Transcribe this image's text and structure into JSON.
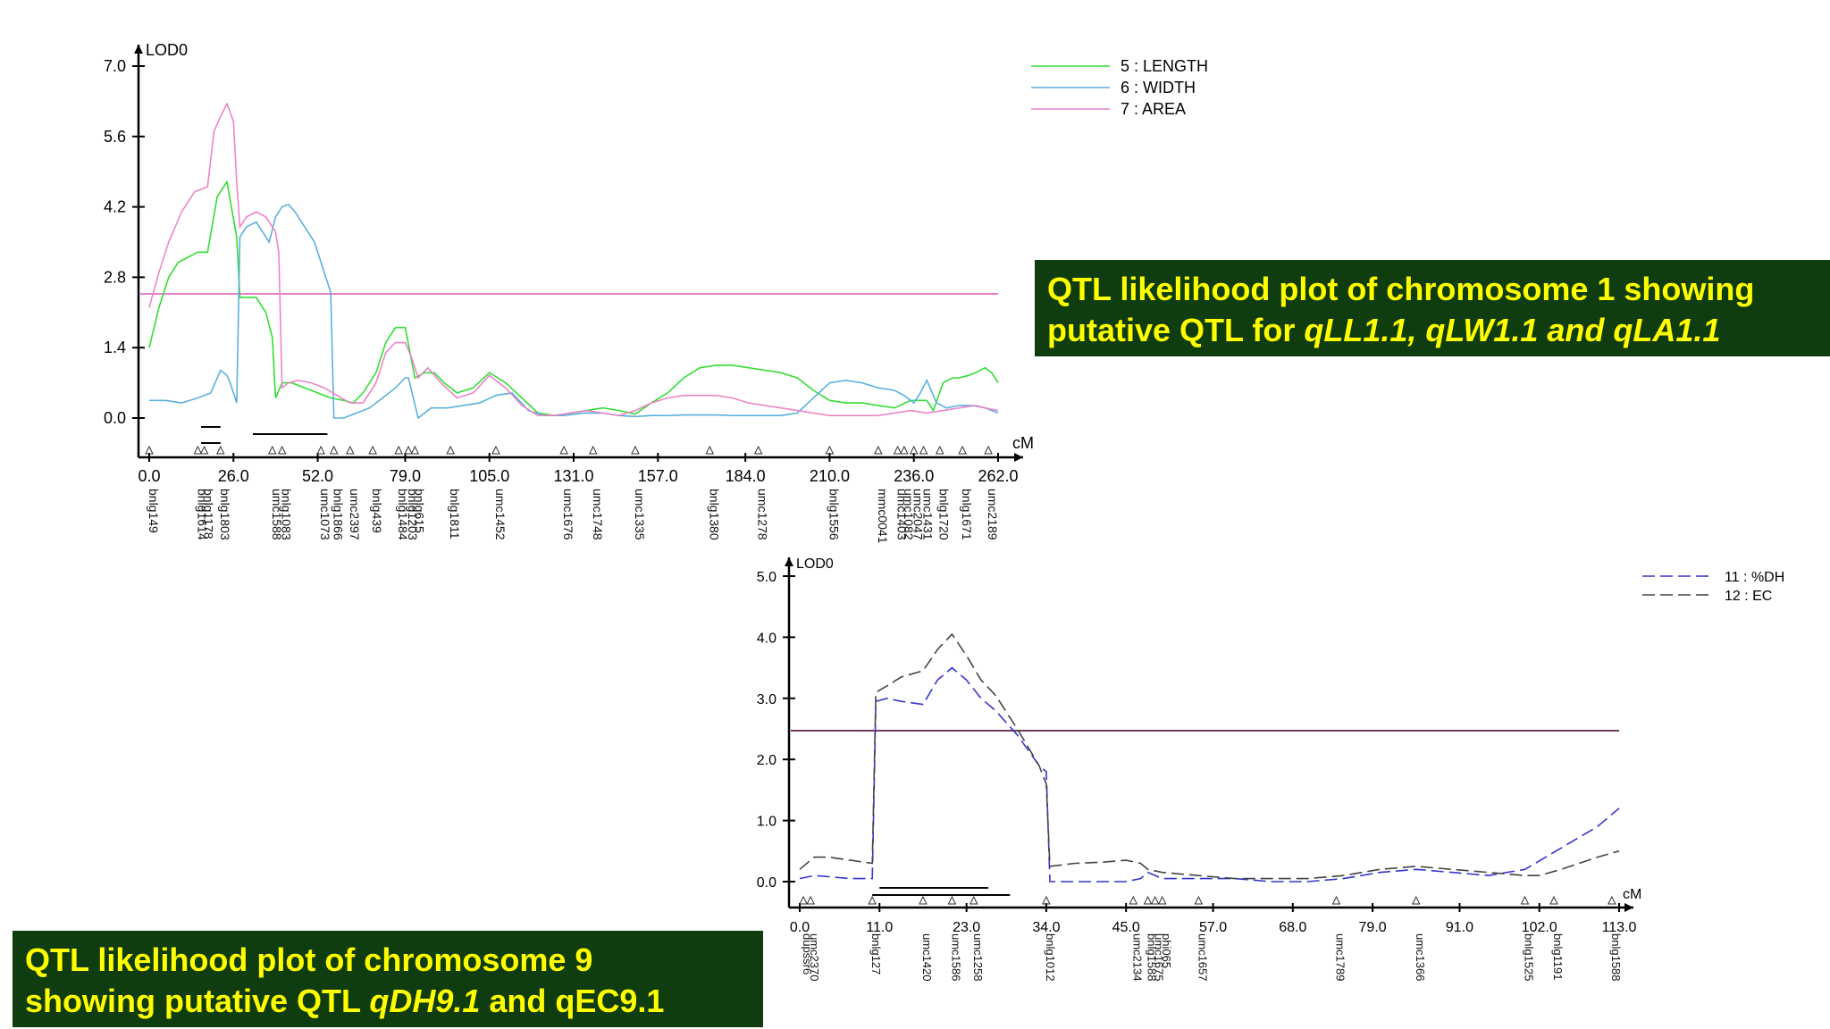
{
  "chart_data": [
    {
      "type": "line",
      "ylabel": "LOD0",
      "xlabel": "cM",
      "xlim": [
        0,
        262
      ],
      "ylim": [
        0,
        7.0
      ],
      "yticks": [
        "0.0",
        "1.4",
        "2.8",
        "4.2",
        "5.6",
        "7.0"
      ],
      "ytick_values": [
        0,
        1.4,
        2.8,
        4.2,
        5.6,
        7.0
      ],
      "xticks": [
        "0.0",
        "26.0",
        "52.0",
        "79.0",
        "105.0",
        "131.0",
        "157.0",
        "184.0",
        "210.0",
        "236.0",
        "262.0"
      ],
      "xtick_values": [
        0,
        26,
        52,
        79,
        105,
        131,
        157,
        184,
        210,
        236,
        262
      ],
      "threshold": 2.47,
      "threshold_color": "#e67fd0",
      "series": [
        {
          "name": "5 : LENGTH",
          "color": "#33dd33",
          "style": "solid",
          "x": [
            0,
            3,
            6,
            9,
            12,
            15,
            18,
            21,
            24,
            27,
            28,
            30,
            33,
            36,
            38,
            39,
            41,
            44,
            48,
            52,
            56,
            60,
            63,
            66,
            70,
            73,
            76,
            79,
            82,
            85,
            88,
            91,
            95,
            100,
            105,
            110,
            115,
            120,
            125,
            130,
            135,
            140,
            145,
            150,
            155,
            160,
            165,
            170,
            175,
            180,
            185,
            190,
            195,
            200,
            205,
            210,
            215,
            220,
            225,
            230,
            235,
            240,
            242,
            245,
            248,
            250,
            253,
            255,
            258,
            260,
            262
          ],
          "y": [
            1.4,
            2.2,
            2.8,
            3.1,
            3.2,
            3.3,
            3.3,
            4.4,
            4.7,
            3.6,
            2.4,
            2.4,
            2.4,
            2.1,
            1.6,
            0.4,
            0.7,
            0.7,
            0.6,
            0.5,
            0.4,
            0.35,
            0.3,
            0.5,
            0.9,
            1.5,
            1.8,
            1.8,
            0.8,
            0.9,
            0.9,
            0.7,
            0.5,
            0.6,
            0.9,
            0.7,
            0.4,
            0.1,
            0.05,
            0.1,
            0.15,
            0.2,
            0.15,
            0.08,
            0.3,
            0.5,
            0.8,
            1.0,
            1.05,
            1.05,
            1.0,
            0.95,
            0.9,
            0.8,
            0.55,
            0.35,
            0.3,
            0.3,
            0.25,
            0.2,
            0.35,
            0.35,
            0.15,
            0.7,
            0.8,
            0.8,
            0.85,
            0.9,
            1.0,
            0.9,
            0.7
          ]
        },
        {
          "name": "6 : WIDTH",
          "color": "#5ab0dc",
          "style": "solid",
          "x": [
            0,
            5,
            10,
            15,
            19,
            22,
            24,
            25,
            26,
            27,
            28,
            30,
            33,
            37,
            39,
            41,
            43,
            45,
            48,
            51,
            54,
            56,
            57,
            60,
            64,
            68,
            72,
            76,
            79,
            80,
            83,
            87,
            92,
            97,
            102,
            107,
            112,
            117,
            122,
            128,
            134,
            140,
            145,
            150,
            155,
            160,
            165,
            170,
            175,
            180,
            185,
            190,
            195,
            200,
            205,
            210,
            215,
            220,
            225,
            230,
            233,
            236,
            238,
            240,
            243,
            246,
            250,
            254,
            258,
            262
          ],
          "y": [
            0.35,
            0.35,
            0.3,
            0.4,
            0.5,
            0.95,
            0.85,
            0.7,
            0.5,
            0.3,
            3.6,
            3.8,
            3.9,
            3.5,
            4.0,
            4.2,
            4.25,
            4.1,
            3.8,
            3.5,
            2.9,
            2.5,
            0.0,
            0.0,
            0.1,
            0.2,
            0.4,
            0.6,
            0.8,
            0.8,
            0.0,
            0.2,
            0.2,
            0.25,
            0.3,
            0.45,
            0.5,
            0.15,
            0.05,
            0.05,
            0.1,
            0.1,
            0.05,
            0.03,
            0.05,
            0.05,
            0.06,
            0.06,
            0.06,
            0.05,
            0.05,
            0.05,
            0.05,
            0.1,
            0.4,
            0.7,
            0.75,
            0.7,
            0.6,
            0.55,
            0.45,
            0.3,
            0.5,
            0.75,
            0.3,
            0.2,
            0.25,
            0.25,
            0.2,
            0.1
          ]
        },
        {
          "name": "7 : AREA",
          "color": "#ea86c8",
          "style": "solid",
          "x": [
            0,
            3,
            6,
            10,
            14,
            18,
            20,
            22,
            24,
            26,
            27,
            28,
            30,
            33,
            36,
            39,
            40,
            41,
            43,
            46,
            50,
            54,
            58,
            62,
            66,
            70,
            73,
            76,
            79,
            81,
            83,
            86,
            90,
            95,
            100,
            105,
            110,
            115,
            120,
            125,
            130,
            135,
            140,
            145,
            150,
            155,
            160,
            165,
            170,
            175,
            180,
            185,
            190,
            195,
            200,
            205,
            210,
            215,
            220,
            225,
            230,
            235,
            240,
            245,
            250,
            255,
            258,
            262
          ],
          "y": [
            2.2,
            2.9,
            3.5,
            4.1,
            4.5,
            4.6,
            5.7,
            6.0,
            6.25,
            5.9,
            4.7,
            3.8,
            4.0,
            4.1,
            4.0,
            3.7,
            3.3,
            0.6,
            0.7,
            0.75,
            0.7,
            0.6,
            0.45,
            0.3,
            0.3,
            0.7,
            1.3,
            1.5,
            1.5,
            1.2,
            0.8,
            1.0,
            0.7,
            0.4,
            0.5,
            0.85,
            0.6,
            0.25,
            0.05,
            0.05,
            0.1,
            0.15,
            0.1,
            0.05,
            0.15,
            0.3,
            0.4,
            0.45,
            0.45,
            0.45,
            0.4,
            0.3,
            0.25,
            0.2,
            0.15,
            0.1,
            0.05,
            0.05,
            0.05,
            0.05,
            0.1,
            0.15,
            0.1,
            0.15,
            0.2,
            0.25,
            0.2,
            0.15
          ]
        }
      ],
      "markers": [
        {
          "label": "bnlg149",
          "x": 0
        },
        {
          "label": "bnlg1614",
          "x": 15
        },
        {
          "label": "bnlg1178",
          "x": 17
        },
        {
          "label": "bnlg1803",
          "x": 22
        },
        {
          "label": "umc1588",
          "x": 38
        },
        {
          "label": "bnlg1083",
          "x": 41
        },
        {
          "label": "umc1073",
          "x": 53
        },
        {
          "label": "bnlg1866",
          "x": 57
        },
        {
          "label": "umc2397",
          "x": 62
        },
        {
          "label": "bnlg439",
          "x": 69
        },
        {
          "label": "bnlg1484",
          "x": 77
        },
        {
          "label": "bnlg1203",
          "x": 80
        },
        {
          "label": "bnlg615",
          "x": 82
        },
        {
          "label": "bnlg1811",
          "x": 93
        },
        {
          "label": "umc1452",
          "x": 107
        },
        {
          "label": "umc1676",
          "x": 128
        },
        {
          "label": "umc1748",
          "x": 137
        },
        {
          "label": "umc1335",
          "x": 150
        },
        {
          "label": "bnlg1380",
          "x": 173
        },
        {
          "label": "umc1278",
          "x": 188
        },
        {
          "label": "bnlg1556",
          "x": 210
        },
        {
          "label": "mmc0041",
          "x": 225
        },
        {
          "label": "umc1403",
          "x": 231
        },
        {
          "label": "umc1082",
          "x": 233
        },
        {
          "label": "umc2047",
          "x": 236
        },
        {
          "label": "umc1431",
          "x": 239
        },
        {
          "label": "bnlg1720",
          "x": 244
        },
        {
          "label": "bnlg1671",
          "x": 251
        },
        {
          "label": "umc2189",
          "x": 259
        }
      ],
      "qtl_intervals": [
        [
          16,
          22
        ],
        [
          16,
          22
        ],
        [
          32,
          55
        ]
      ]
    },
    {
      "type": "line",
      "ylabel": "LOD0",
      "xlabel": "cM",
      "xlim": [
        0,
        113
      ],
      "ylim": [
        0,
        5.0
      ],
      "yticks": [
        "0.0",
        "1.0",
        "2.0",
        "3.0",
        "4.0",
        "5.0"
      ],
      "ytick_values": [
        0,
        1,
        2,
        3,
        4,
        5
      ],
      "xticks": [
        "0.0",
        "11.0",
        "23.0",
        "34.0",
        "45.0",
        "57.0",
        "68.0",
        "79.0",
        "91.0",
        "102.0",
        "113.0"
      ],
      "xtick_values": [
        0,
        11,
        23,
        34,
        45,
        57,
        68,
        79,
        91,
        102,
        113
      ],
      "threshold": 2.47,
      "threshold_color": "#6b3a5c",
      "series": [
        {
          "name": "11 : %DH",
          "color": "#3535cc",
          "style": "dashed",
          "x": [
            0,
            2,
            4,
            7,
            10,
            10.5,
            12,
            14,
            17,
            19,
            21,
            23,
            25,
            27,
            30,
            33,
            34,
            34.5,
            38,
            42,
            45,
            47,
            48,
            50,
            55,
            60,
            65,
            70,
            75,
            80,
            85,
            90,
            95,
            100,
            105,
            110,
            113
          ],
          "y": [
            0.05,
            0.1,
            0.08,
            0.05,
            0.05,
            2.95,
            3.0,
            2.95,
            2.9,
            3.3,
            3.5,
            3.3,
            3.0,
            2.8,
            2.4,
            1.9,
            1.8,
            0.0,
            0.0,
            0.0,
            0.0,
            0.05,
            0.15,
            0.05,
            0.05,
            0.05,
            0.0,
            0.0,
            0.05,
            0.15,
            0.2,
            0.15,
            0.1,
            0.2,
            0.55,
            0.9,
            1.2
          ]
        },
        {
          "name": "12 : EC",
          "color": "#444444",
          "style": "dashed",
          "x": [
            0,
            2,
            4,
            7,
            10,
            10.5,
            12,
            14,
            17,
            19,
            21,
            23,
            25,
            27,
            30,
            33,
            34,
            34.5,
            38,
            42,
            45,
            47,
            48,
            50,
            55,
            60,
            65,
            70,
            75,
            80,
            85,
            90,
            95,
            100,
            102,
            105,
            110,
            113
          ],
          "y": [
            0.2,
            0.4,
            0.4,
            0.35,
            0.3,
            3.1,
            3.2,
            3.35,
            3.45,
            3.8,
            4.05,
            3.7,
            3.3,
            3.05,
            2.5,
            1.9,
            1.6,
            0.25,
            0.3,
            0.32,
            0.35,
            0.3,
            0.2,
            0.15,
            0.1,
            0.05,
            0.05,
            0.05,
            0.1,
            0.2,
            0.25,
            0.2,
            0.15,
            0.1,
            0.1,
            0.2,
            0.4,
            0.5
          ]
        }
      ],
      "markers": [
        {
          "label": "dupssr6",
          "x": 0.5
        },
        {
          "label": "umc2370",
          "x": 1.5
        },
        {
          "label": "bnlg127",
          "x": 10
        },
        {
          "label": "umc1420",
          "x": 17
        },
        {
          "label": "umc1586",
          "x": 21
        },
        {
          "label": "umc1258",
          "x": 24
        },
        {
          "label": "bnlg1012",
          "x": 34
        },
        {
          "label": "umc2134",
          "x": 46
        },
        {
          "label": "bnlg1588",
          "x": 48
        },
        {
          "label": "umc1675",
          "x": 49
        },
        {
          "label": "phi065",
          "x": 50
        },
        {
          "label": "umc1657",
          "x": 55
        },
        {
          "label": "umc1789",
          "x": 74
        },
        {
          "label": "umc1366",
          "x": 85
        },
        {
          "label": "bnlg1525",
          "x": 100
        },
        {
          "label": "bnlg1191",
          "x": 104
        },
        {
          "label": "bnlg1588",
          "x": 112
        }
      ],
      "qtl_intervals": [
        [
          11,
          26
        ],
        [
          10,
          29
        ]
      ]
    }
  ],
  "captions": {
    "chr1_line1": "QTL likelihood plot of chromosome 1 showing",
    "chr1_line2_plain": "putative QTL for ",
    "chr1_line2_italic": "qLL1.1, qLW1.1 and qLA1.1",
    "chr9_line1": "QTL likelihood plot of chromosome 9",
    "chr9_line2_plain": "showing putative QTL ",
    "chr9_line2_italic": "qDH9.1",
    "chr9_line2_tail": " and qEC9.1"
  }
}
